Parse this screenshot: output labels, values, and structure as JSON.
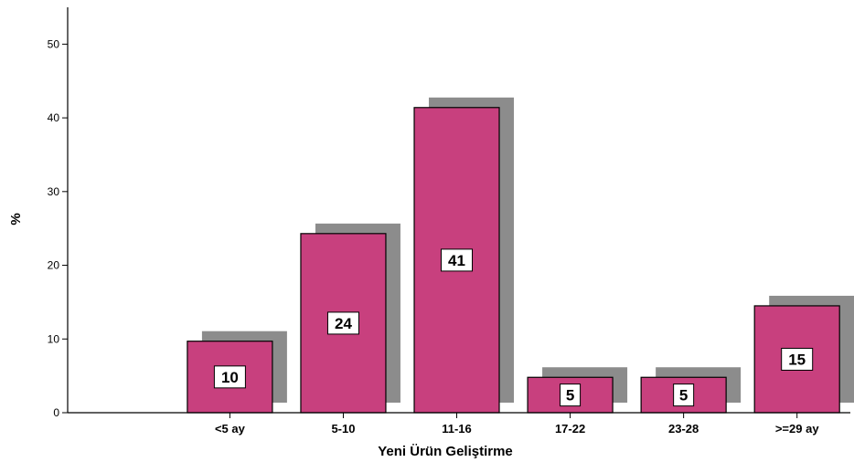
{
  "chart_data": {
    "type": "bar",
    "categories": [
      "<5 ay",
      "5-10",
      "11-16",
      "17-22",
      "23-28",
      ">=29 ay"
    ],
    "values": [
      9.7,
      24.3,
      41.4,
      4.8,
      4.8,
      14.5
    ],
    "data_labels": [
      "10",
      "24",
      "41",
      "5",
      "5",
      "15"
    ],
    "xlabel": "Yeni Ürün Geliştirme",
    "ylabel": "%",
    "ylim": [
      0,
      55
    ],
    "yticks": [
      0,
      10,
      20,
      30,
      40,
      50
    ],
    "grid": false,
    "legend": "none",
    "colors": {
      "bar": "#c8407e",
      "shadow": "#8c8c8c",
      "axis": "#000000"
    }
  }
}
